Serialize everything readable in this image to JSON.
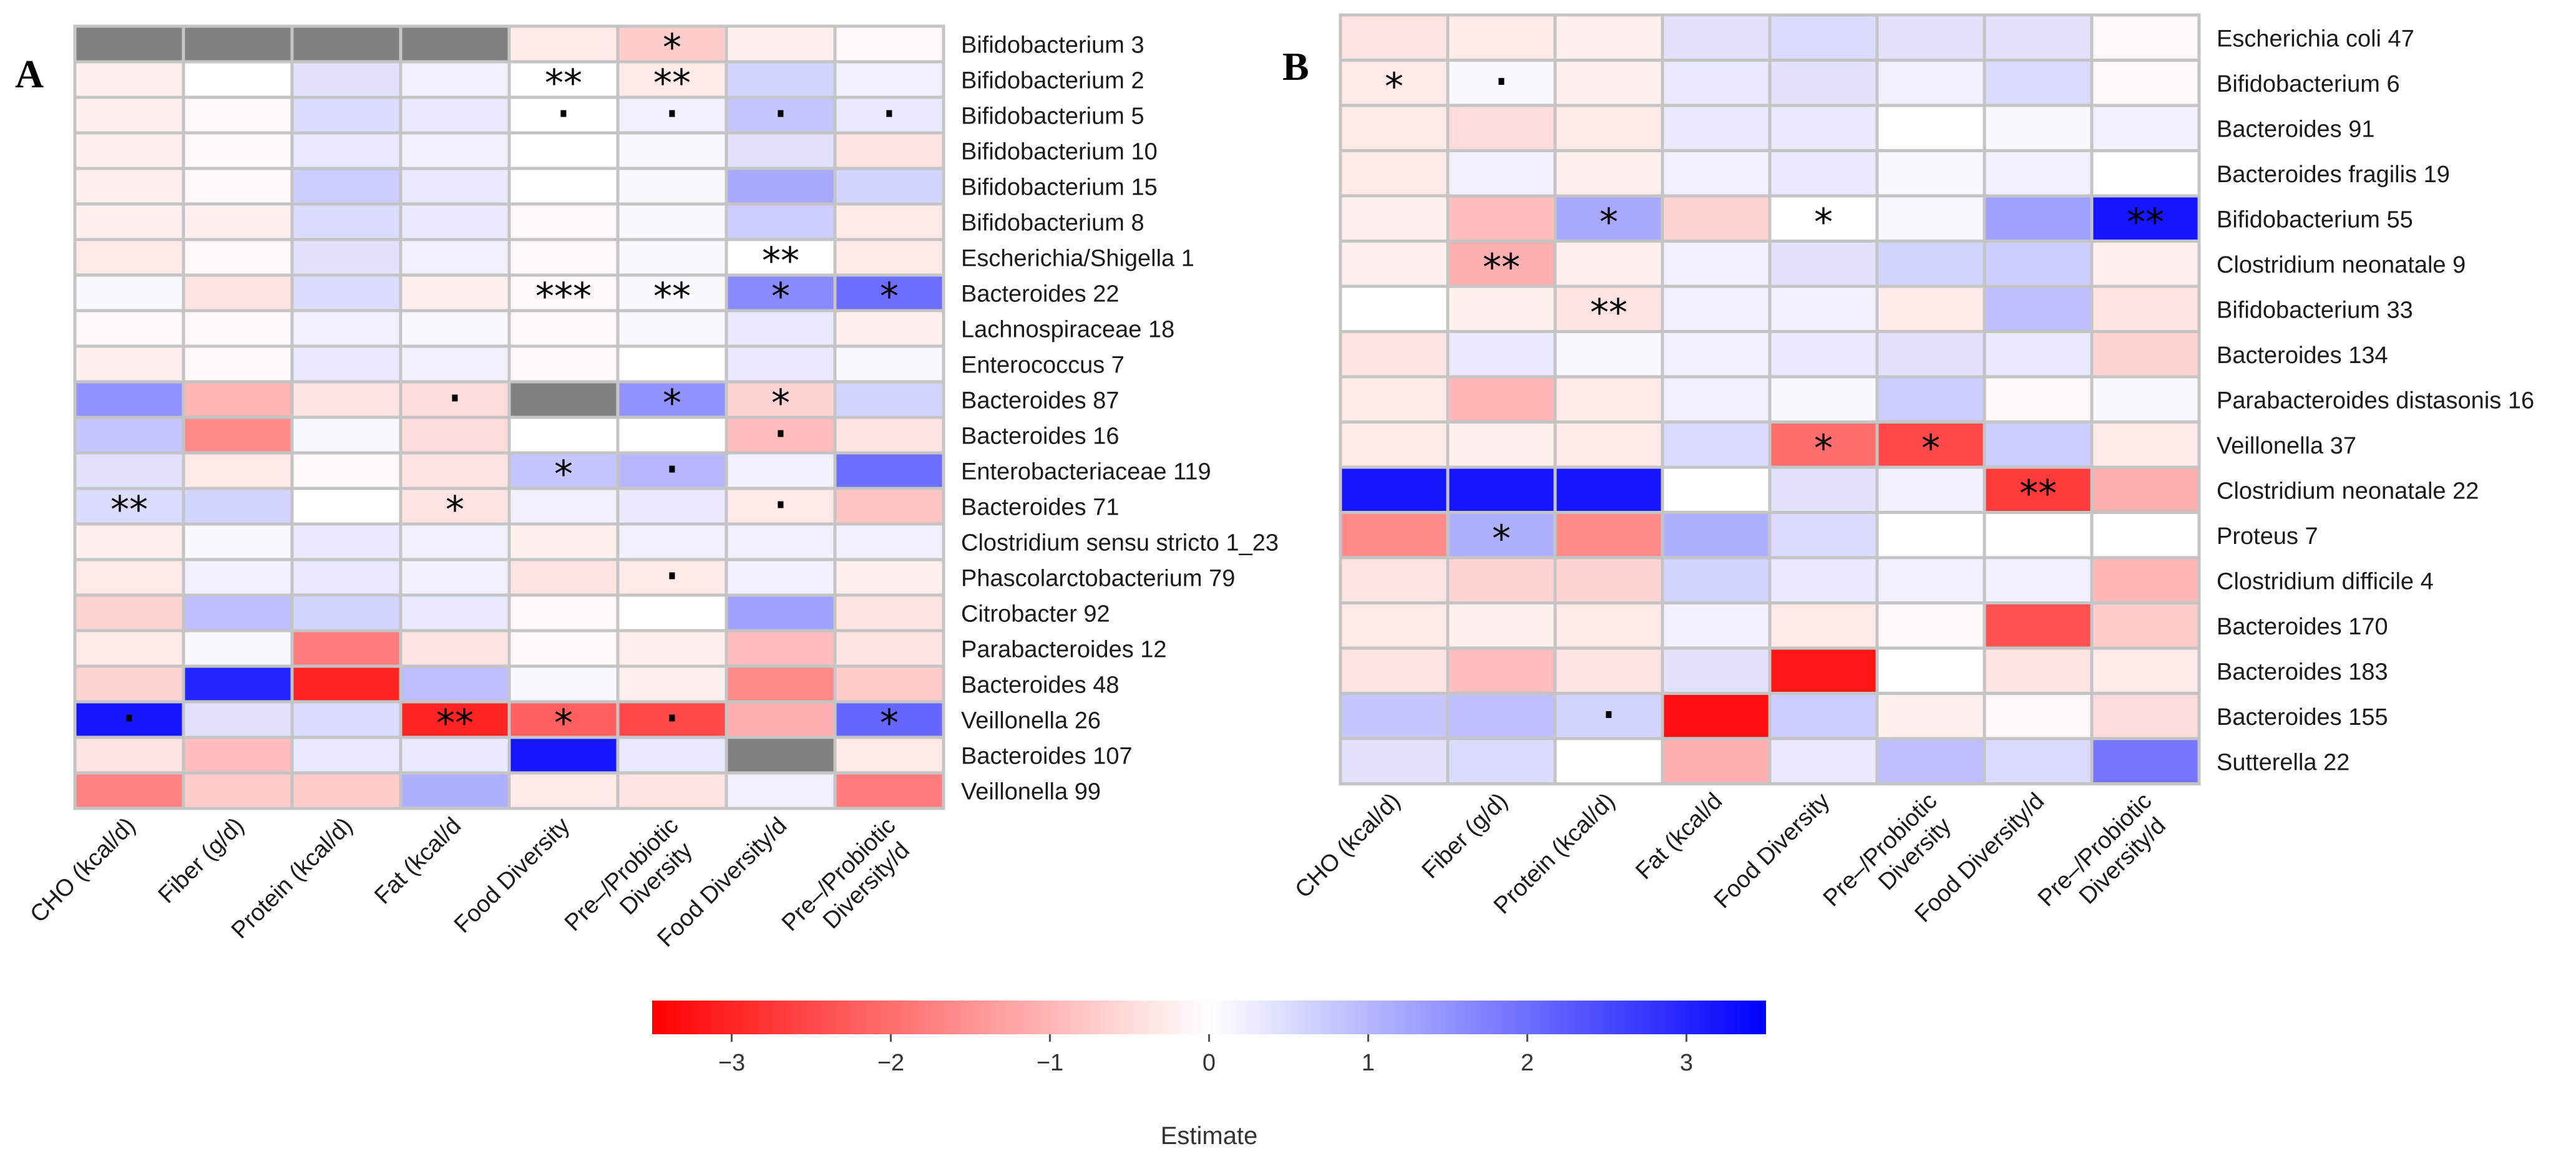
{
  "chart_data": [
    {
      "type": "heatmap",
      "panel": "A",
      "columns": [
        "CHO (kcal/d)",
        "Fiber (g/d)",
        "Protein (kcal/d)",
        "Fat (kcal/d",
        "Food Diversity",
        "Pre–/Probiotic Diversity",
        "Food Diversity/d",
        "Pre–/Probiotic Diversity/d"
      ],
      "rows": [
        "Bifidobacterium 3",
        "Bifidobacterium 2",
        "Bifidobacterium 5",
        "Bifidobacterium 10",
        "Bifidobacterium 15",
        "Bifidobacterium 8",
        "Escherichia/Shigella 1",
        "Bacteroides 22",
        "Lachnospiraceae 18",
        "Enterococcus 7",
        "Bacteroides 87",
        "Bacteroides 16",
        "Enterobacteriaceae 119",
        "Bacteroides 71",
        "Clostridium sensu stricto 1_23",
        "Phascolarctobacterium 79",
        "Citrobacter 92",
        "Parabacteroides 12",
        "Bacteroides 48",
        "Veillonella 26",
        "Bacteroides 107",
        "Veillonella 99"
      ],
      "values": [
        [
          null,
          null,
          null,
          null,
          -0.3,
          -0.7,
          -0.2,
          -0.1
        ],
        [
          -0.2,
          0.0,
          0.4,
          0.2,
          0.0,
          -0.3,
          0.6,
          0.2
        ],
        [
          -0.2,
          -0.1,
          0.5,
          0.3,
          0.0,
          0.2,
          0.8,
          0.3
        ],
        [
          -0.2,
          -0.1,
          0.3,
          0.2,
          0.0,
          0.1,
          0.4,
          -0.4
        ],
        [
          -0.2,
          -0.1,
          0.7,
          0.3,
          0.0,
          0.1,
          1.2,
          0.6
        ],
        [
          -0.2,
          -0.2,
          0.5,
          0.3,
          -0.1,
          0.1,
          0.7,
          -0.3
        ],
        [
          -0.3,
          -0.1,
          0.4,
          0.2,
          -0.1,
          0.1,
          0.0,
          -0.3
        ],
        [
          0.1,
          -0.4,
          0.5,
          -0.2,
          -0.1,
          0.1,
          1.6,
          2.0
        ],
        [
          -0.1,
          -0.1,
          0.2,
          0.1,
          -0.1,
          0.1,
          0.3,
          -0.2
        ],
        [
          -0.2,
          -0.1,
          0.3,
          0.2,
          -0.1,
          0.0,
          0.3,
          0.1
        ],
        [
          1.5,
          -1.0,
          -0.4,
          -0.5,
          null,
          1.5,
          -0.6,
          0.6
        ],
        [
          0.8,
          -1.6,
          0.1,
          -0.5,
          0.0,
          0.0,
          -0.9,
          -0.4
        ],
        [
          0.4,
          -0.3,
          -0.1,
          -0.4,
          0.8,
          1.0,
          0.2,
          2.0
        ],
        [
          0.5,
          0.6,
          0.0,
          -0.4,
          0.2,
          0.3,
          -0.3,
          -0.8
        ],
        [
          -0.2,
          0.1,
          0.3,
          0.2,
          -0.2,
          0.2,
          0.2,
          0.2
        ],
        [
          -0.3,
          0.2,
          0.3,
          0.2,
          -0.4,
          -0.3,
          0.2,
          -0.2
        ],
        [
          -0.6,
          0.9,
          0.6,
          0.3,
          -0.1,
          0.0,
          1.3,
          -0.4
        ],
        [
          -0.3,
          0.1,
          -1.8,
          -0.4,
          -0.1,
          -0.2,
          -0.9,
          -0.4
        ],
        [
          -0.6,
          3.0,
          -3.0,
          0.9,
          0.1,
          -0.2,
          -1.6,
          -0.7
        ],
        [
          3.2,
          0.4,
          0.5,
          -3.0,
          -2.2,
          -2.5,
          -1.1,
          2.1
        ],
        [
          -0.4,
          -0.9,
          0.3,
          0.3,
          3.2,
          0.3,
          null,
          -0.3
        ],
        [
          -1.7,
          -0.7,
          -0.7,
          1.1,
          -0.3,
          -0.4,
          0.2,
          -1.8
        ]
      ],
      "significance": [
        [
          "",
          "",
          "",
          "",
          "",
          "*",
          "",
          ""
        ],
        [
          "",
          "",
          "",
          "",
          "**",
          "**",
          "",
          ""
        ],
        [
          "",
          "",
          "",
          "",
          "·",
          "·",
          "·",
          "·"
        ],
        [
          "",
          "",
          "",
          "",
          "",
          "",
          "",
          ""
        ],
        [
          "",
          "",
          "",
          "",
          "",
          "",
          "",
          ""
        ],
        [
          "",
          "",
          "",
          "",
          "",
          "",
          "",
          ""
        ],
        [
          "",
          "",
          "",
          "",
          "",
          "",
          "**",
          ""
        ],
        [
          "",
          "",
          "",
          "",
          "***",
          "**",
          "*",
          "*"
        ],
        [
          "",
          "",
          "",
          "",
          "",
          "",
          "",
          ""
        ],
        [
          "",
          "",
          "",
          "",
          "",
          "",
          "",
          ""
        ],
        [
          "",
          "",
          "",
          "·",
          "",
          "*",
          "*",
          ""
        ],
        [
          "",
          "",
          "",
          "",
          "",
          "",
          "·",
          ""
        ],
        [
          "",
          "",
          "",
          "",
          "*",
          "·",
          "",
          ""
        ],
        [
          "**",
          "",
          "",
          "*",
          "",
          "",
          "·",
          ""
        ],
        [
          "",
          "",
          "",
          "",
          "",
          "",
          "",
          ""
        ],
        [
          "",
          "",
          "",
          "",
          "",
          "·",
          "",
          ""
        ],
        [
          "",
          "",
          "",
          "",
          "",
          "",
          "",
          ""
        ],
        [
          "",
          "",
          "",
          "",
          "",
          "",
          "",
          ""
        ],
        [
          "",
          "",
          "",
          "",
          "",
          "",
          "",
          ""
        ],
        [
          "·",
          "",
          "",
          "**",
          "*",
          "·",
          "",
          "*"
        ],
        [
          "",
          "",
          "",
          "",
          "",
          "",
          "",
          ""
        ],
        [
          "",
          "",
          "",
          "",
          "",
          "",
          "",
          ""
        ]
      ]
    },
    {
      "type": "heatmap",
      "panel": "B",
      "columns": [
        "CHO (kcal/d)",
        "Fiber (g/d)",
        "Protein (kcal/d)",
        "Fat (kcal/d",
        "Food Diversity",
        "Pre–/Probiotic Diversity",
        "Food Diversity/d",
        "Pre–/Probiotic Diversity/d"
      ],
      "rows": [
        "Escherichia coli 47",
        "Bifidobacterium 6",
        "Bacteroides 91",
        "Bacteroides fragilis 19",
        "Bifidobacterium 55",
        "Clostridium neonatale 9",
        "Bifidobacterium 33",
        "Bacteroides 134",
        "Parabacteroides distasonis 16",
        "Veillonella 37",
        "Clostridium neonatale 22",
        "Proteus 7",
        "Clostridium difficile 4",
        "Bacteroides 170",
        "Bacteroides 183",
        "Bacteroides 155",
        "Sutterella 22"
      ],
      "values": [
        [
          -0.4,
          -0.3,
          -0.2,
          0.4,
          0.5,
          0.4,
          0.4,
          -0.1
        ],
        [
          -0.3,
          0.1,
          -0.2,
          0.3,
          0.4,
          0.2,
          0.5,
          -0.1
        ],
        [
          -0.3,
          -0.5,
          -0.3,
          0.3,
          0.3,
          0.0,
          0.1,
          0.2
        ],
        [
          -0.3,
          0.2,
          -0.2,
          0.2,
          0.3,
          0.1,
          0.2,
          0.0
        ],
        [
          -0.2,
          -0.9,
          1.2,
          -0.6,
          0.0,
          0.1,
          1.3,
          3.2
        ],
        [
          -0.2,
          -1.1,
          -0.2,
          0.2,
          0.4,
          0.6,
          0.7,
          -0.2
        ],
        [
          0.0,
          -0.2,
          -0.4,
          0.2,
          0.2,
          -0.3,
          0.9,
          -0.4
        ],
        [
          -0.4,
          0.3,
          0.1,
          0.2,
          0.3,
          0.4,
          0.3,
          -0.6
        ],
        [
          -0.3,
          -1.0,
          -0.3,
          0.2,
          0.1,
          0.7,
          -0.1,
          0.1
        ],
        [
          -0.3,
          -0.2,
          -0.3,
          0.5,
          -2.0,
          -2.5,
          0.7,
          -0.3
        ],
        [
          3.2,
          3.2,
          3.2,
          0.0,
          0.4,
          0.2,
          -2.7,
          -1.1
        ],
        [
          -1.6,
          1.1,
          -1.6,
          1.1,
          0.5,
          0.0,
          0.0,
          0.0
        ],
        [
          -0.4,
          -0.6,
          -0.6,
          0.6,
          0.3,
          0.2,
          0.2,
          -1.0
        ],
        [
          -0.3,
          -0.2,
          -0.3,
          0.2,
          -0.3,
          -0.1,
          -2.4,
          -0.7
        ],
        [
          -0.4,
          -0.9,
          -0.4,
          0.4,
          -3.2,
          0.0,
          -0.4,
          -0.3
        ],
        [
          0.8,
          0.9,
          0.6,
          -3.3,
          0.7,
          -0.2,
          -0.1,
          -0.5
        ],
        [
          0.4,
          0.5,
          0.0,
          -1.1,
          0.3,
          0.9,
          0.5,
          1.9
        ]
      ],
      "significance": [
        [
          "",
          "",
          "",
          "",
          "",
          "",
          "",
          ""
        ],
        [
          "*",
          "·",
          "",
          "",
          "",
          "",
          "",
          ""
        ],
        [
          "",
          "",
          "",
          "",
          "",
          "",
          "",
          ""
        ],
        [
          "",
          "",
          "",
          "",
          "",
          "",
          "",
          ""
        ],
        [
          "",
          "",
          "*",
          "",
          "*",
          "",
          "",
          "**"
        ],
        [
          "",
          "**",
          "",
          "",
          "",
          "",
          "",
          ""
        ],
        [
          "",
          "",
          "**",
          "",
          "",
          "",
          "",
          ""
        ],
        [
          "",
          "",
          "",
          "",
          "",
          "",
          "",
          ""
        ],
        [
          "",
          "",
          "",
          "",
          "",
          "",
          "",
          ""
        ],
        [
          "",
          "",
          "",
          "",
          "*",
          "*",
          "",
          ""
        ],
        [
          "",
          "",
          "",
          "",
          "",
          "",
          "**",
          ""
        ],
        [
          "",
          "*",
          "",
          "",
          "",
          "",
          "",
          ""
        ],
        [
          "",
          "",
          "",
          "",
          "",
          "",
          "",
          ""
        ],
        [
          "",
          "",
          "",
          "",
          "",
          "",
          "",
          ""
        ],
        [
          "",
          "",
          "",
          "",
          "",
          "",
          "",
          ""
        ],
        [
          "",
          "",
          "·",
          "",
          "",
          "",
          "",
          ""
        ],
        [
          "",
          "",
          "",
          "",
          "",
          "",
          "",
          ""
        ]
      ]
    }
  ],
  "legend": {
    "title": "Estimate",
    "range": [
      -3.5,
      3.5
    ],
    "ticks": [
      -3,
      -2,
      -1,
      0,
      1,
      2,
      3
    ],
    "tick_labels": [
      "−3",
      "−2",
      "−1",
      "0",
      "1",
      "2",
      "3"
    ]
  },
  "colors": {
    "negative": "#ff0000",
    "zero": "#ffffff",
    "positive": "#0000ff",
    "missing": "#808080",
    "grid": "#c4c4c4"
  }
}
